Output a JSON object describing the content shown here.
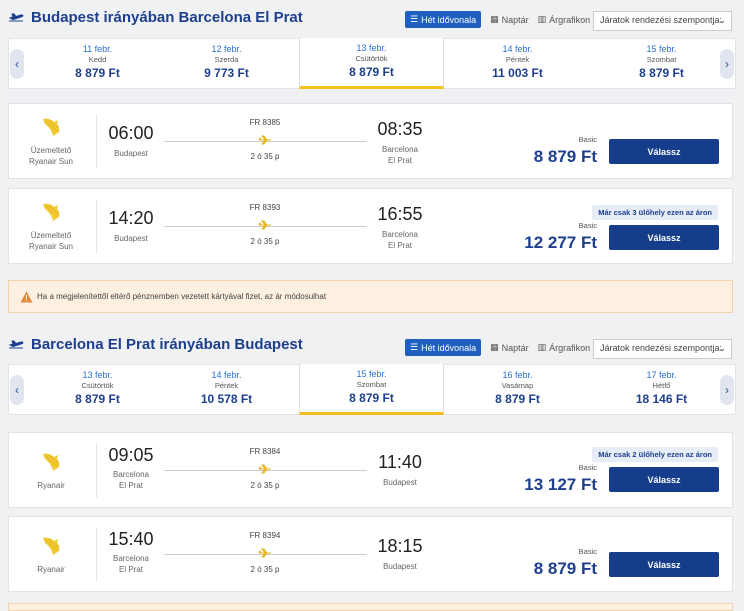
{
  "outbound": {
    "title": "Budapest irányában Barcelona El Prat",
    "view_tabs": [
      "Hét idővonala",
      "Naptár",
      "Árgrafikon"
    ],
    "sort_placeholder": "Járatok rendezési szempontja:",
    "dates": [
      {
        "date": "11 febr.",
        "weekday": "Kedd",
        "price": "8 879 Ft",
        "selected": false
      },
      {
        "date": "12 febr.",
        "weekday": "Szerda",
        "price": "9 773 Ft",
        "selected": false
      },
      {
        "date": "13 febr.",
        "weekday": "Csütörtök",
        "price": "8 879 Ft",
        "selected": true
      },
      {
        "date": "14 febr.",
        "weekday": "Péntek",
        "price": "11 003 Ft",
        "selected": false
      },
      {
        "date": "15 febr.",
        "weekday": "Szombat",
        "price": "8 879 Ft",
        "selected": false
      }
    ],
    "flights": [
      {
        "operator": "Üzemeltető Ryanair Sun",
        "op1": "Üzemeltető",
        "op2": "Ryanair Sun",
        "dep_time": "06:00",
        "dep_city1": "Budapest",
        "dep_city2": "",
        "arr_time": "08:35",
        "arr_city1": "Barcelona",
        "arr_city2": "El Prat",
        "flight_no": "FR 8385",
        "duration": "2 ó 35 p",
        "badge": "",
        "fare": "Basic",
        "price": "8 879 Ft",
        "button": "Válassz"
      },
      {
        "operator": "Üzemeltető Ryanair Sun",
        "op1": "Üzemeltető",
        "op2": "Ryanair Sun",
        "dep_time": "14:20",
        "dep_city1": "Budapest",
        "dep_city2": "",
        "arr_time": "16:55",
        "arr_city1": "Barcelona",
        "arr_city2": "El Prat",
        "flight_no": "FR 8393",
        "duration": "2 ó 35 p",
        "badge": "Már csak 3 ülőhely ezen az áron",
        "fare": "Basic",
        "price": "12 277 Ft",
        "button": "Válassz"
      }
    ]
  },
  "alert": {
    "text": "Ha a megjelenítettől eltérő pénznemben vezetett kártyával fizet, az ár módosulhat"
  },
  "inbound": {
    "title": "Barcelona El Prat irányában Budapest",
    "view_tabs": [
      "Hét idővonala",
      "Naptár",
      "Árgrafikon"
    ],
    "sort_placeholder": "Járatok rendezési szempontja:",
    "dates": [
      {
        "date": "13 febr.",
        "weekday": "Csütörtök",
        "price": "8 879 Ft",
        "selected": false
      },
      {
        "date": "14 febr.",
        "weekday": "Péntek",
        "price": "10 578 Ft",
        "selected": false
      },
      {
        "date": "15 febr.",
        "weekday": "Szombat",
        "price": "8 879 Ft",
        "selected": true
      },
      {
        "date": "16 febr.",
        "weekday": "Vasárnap",
        "price": "8 879 Ft",
        "selected": false
      },
      {
        "date": "17 febr.",
        "weekday": "Hétfő",
        "price": "18 146 Ft",
        "selected": false
      }
    ],
    "flights": [
      {
        "operator": "Ryanair",
        "op1": "Ryanair",
        "op2": "",
        "dep_time": "09:05",
        "dep_city1": "Barcelona",
        "dep_city2": "El Prat",
        "arr_time": "11:40",
        "arr_city1": "Budapest",
        "arr_city2": "",
        "flight_no": "FR 8384",
        "duration": "2 ó 35 p",
        "badge": "Már csak 2 ülőhely ezen az áron",
        "fare": "Basic",
        "price": "13 127 Ft",
        "button": "Válassz"
      },
      {
        "operator": "Ryanair",
        "op1": "Ryanair",
        "op2": "",
        "dep_time": "15:40",
        "dep_city1": "Barcelona",
        "dep_city2": "El Prat",
        "arr_time": "18:15",
        "arr_city1": "Budapest",
        "arr_city2": "",
        "flight_no": "FR 8394",
        "duration": "2 ó 35 p",
        "badge": "",
        "fare": "Basic",
        "price": "8 879 Ft",
        "button": "Válassz"
      }
    ]
  },
  "colors": {
    "brand_blue": "#1e3f8e",
    "button_blue": "#163d8c",
    "selected_underline": "#f5c120",
    "logo_yellow": "#f1c933"
  }
}
